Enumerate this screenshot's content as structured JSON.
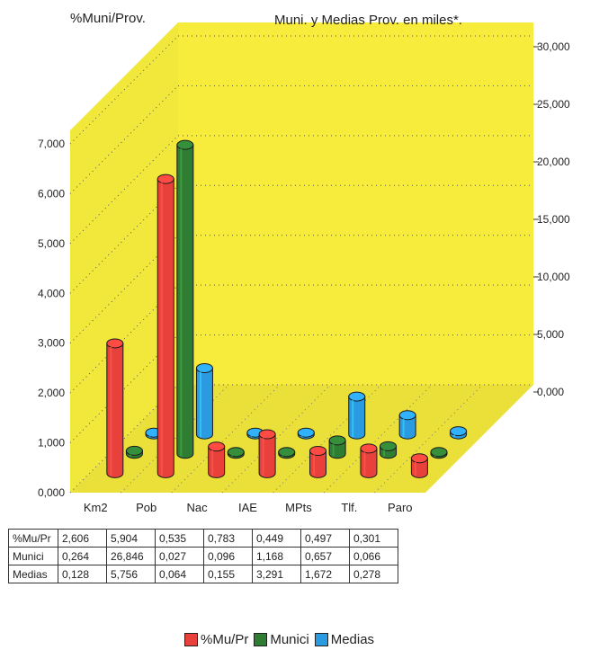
{
  "chart_data": {
    "type": "bar",
    "title": "",
    "left_axis_title": "%Muni/Prov.",
    "right_axis_title": "Muni. y Medias Prov. en miles*.",
    "categories": [
      "Km2",
      "Pob",
      "Nac",
      "IAE",
      "MPts",
      "Tlf.",
      "Paro"
    ],
    "left_axis": {
      "min": 0,
      "max": 7,
      "ticks": [
        "0,000",
        "1,000",
        "2,000",
        "3,000",
        "4,000",
        "5,000",
        "6,000",
        "7,000"
      ]
    },
    "right_axis": {
      "min": 0,
      "max": 30,
      "ticks": [
        "0,000",
        "5,000",
        "10,000",
        "15,000",
        "20,000",
        "25,000",
        "30,000"
      ]
    },
    "series": [
      {
        "name": "%Mu/Pr",
        "axis": "left",
        "color": "#e8413b",
        "values": [
          2.606,
          5.904,
          0.535,
          0.783,
          0.449,
          0.497,
          0.301
        ],
        "labels": [
          "2,606",
          "5,904",
          "0,535",
          "0,783",
          "0,449",
          "0,497",
          "0,301"
        ]
      },
      {
        "name": "Munici",
        "axis": "right",
        "color": "#2f7d33",
        "values": [
          0.264,
          26.846,
          0.027,
          0.096,
          1.168,
          0.657,
          0.066
        ],
        "labels": [
          "0,264",
          "26,846",
          "0,027",
          "0,096",
          "1,168",
          "0,657",
          "0,066"
        ]
      },
      {
        "name": "Medias",
        "axis": "right",
        "color": "#2a9be0",
        "values": [
          0.128,
          5.756,
          0.064,
          0.155,
          3.291,
          1.672,
          0.278
        ],
        "labels": [
          "0,128",
          "5,756",
          "0,064",
          "0,155",
          "3,291",
          "1,672",
          "0,278"
        ]
      }
    ],
    "legend_position": "bottom",
    "background_color": "#f7ec3c",
    "grid": true
  }
}
